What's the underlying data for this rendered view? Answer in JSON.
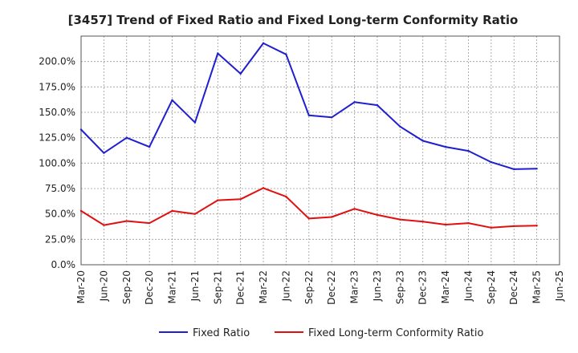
{
  "chart_data": {
    "type": "line",
    "title": "[3457]  Trend of Fixed Ratio and Fixed Long-term Conformity Ratio",
    "xlabel": "",
    "ylabel": "",
    "categories": [
      "Mar-20",
      "Jun-20",
      "Sep-20",
      "Dec-20",
      "Mar-21",
      "Jun-21",
      "Sep-21",
      "Dec-21",
      "Mar-22",
      "Jun-22",
      "Sep-22",
      "Dec-22",
      "Mar-23",
      "Jun-23",
      "Sep-23",
      "Dec-23",
      "Mar-24",
      "Jun-24",
      "Sep-24",
      "Dec-24",
      "Mar-25",
      "Jun-25"
    ],
    "ylim": [
      0,
      225
    ],
    "yticks": [
      0,
      25,
      50,
      75,
      100,
      125,
      150,
      175,
      200
    ],
    "ytick_labels": [
      "0.0%",
      "25.0%",
      "50.0%",
      "75.0%",
      "100.0%",
      "125.0%",
      "150.0%",
      "175.0%",
      "200.0%"
    ],
    "grid": true,
    "legend_position": "bottom",
    "series": [
      {
        "name": "Fixed Ratio",
        "color": "#1f1fd0",
        "values": [
          133,
          110,
          125,
          116,
          162,
          140,
          208,
          188,
          218,
          207,
          147,
          145,
          160,
          157,
          136,
          122,
          116,
          112,
          101,
          94,
          94.5,
          null
        ]
      },
      {
        "name": "Fixed Long-term Conformity Ratio",
        "color": "#e01010",
        "values": [
          53,
          39,
          43,
          41,
          53,
          50,
          63.5,
          64.5,
          75.5,
          67,
          45.5,
          47,
          55,
          49,
          44.5,
          42.5,
          39.5,
          41,
          36.5,
          38,
          38.5,
          null
        ]
      }
    ]
  }
}
